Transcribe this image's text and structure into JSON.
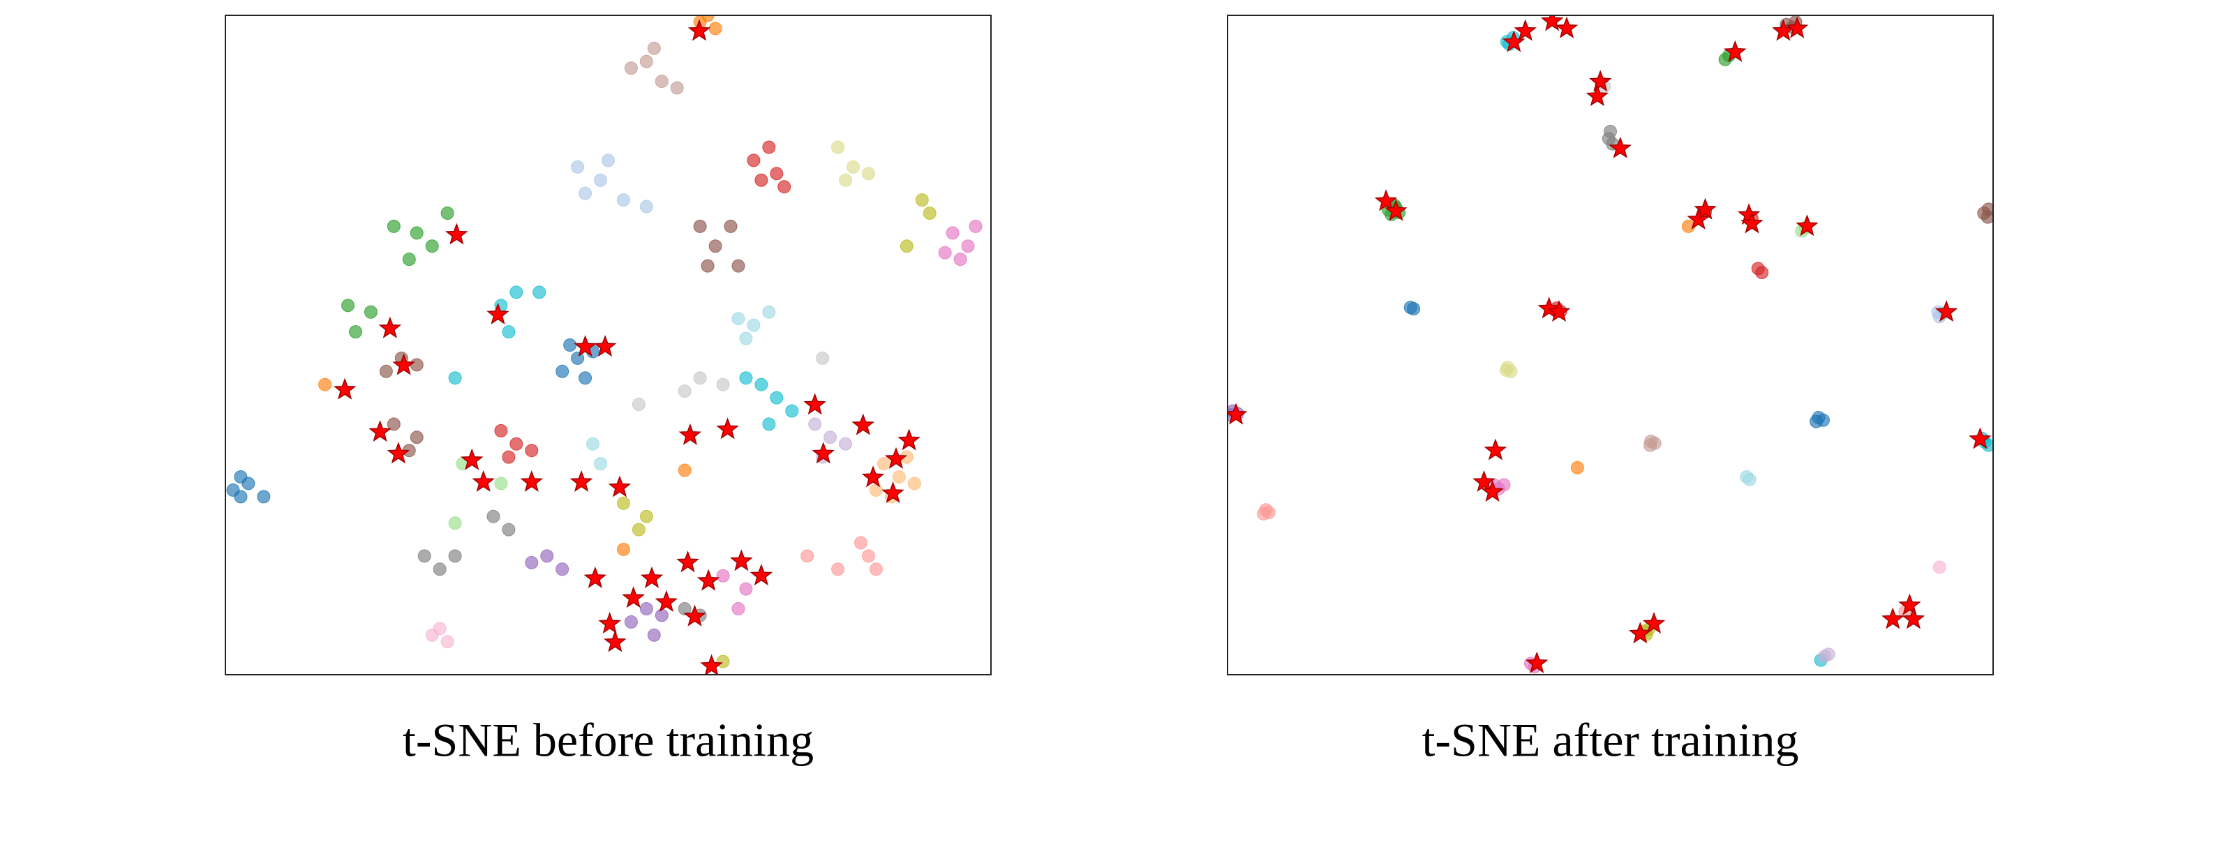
{
  "chart_data": [
    {
      "type": "scatter",
      "title": "t-SNE before training",
      "xlim": [
        0,
        100
      ],
      "ylim": [
        0,
        100
      ],
      "series": [
        {
          "color": "#1f77b4",
          "x": [
            46,
            44,
            48,
            47,
            45,
            2,
            1,
            3,
            2,
            5
          ],
          "values": [
            48,
            46,
            49,
            45,
            50,
            30,
            28,
            29,
            27,
            27
          ]
        },
        {
          "color": "#aec7e8",
          "x": [
            46,
            49,
            47,
            50,
            52,
            55
          ],
          "values": [
            77,
            75,
            73,
            78,
            72,
            71
          ]
        },
        {
          "color": "#ff7f0e",
          "x": [
            62,
            64,
            63,
            13,
            60,
            52
          ],
          "values": [
            99,
            98,
            100,
            44,
            31,
            19
          ]
        },
        {
          "color": "#ffbb78",
          "x": [
            86,
            88,
            90,
            85,
            87,
            89
          ],
          "values": [
            32,
            30,
            29,
            28,
            27,
            33
          ]
        },
        {
          "color": "#2ca02c",
          "x": [
            22,
            25,
            27,
            24,
            29,
            16,
            17,
            19
          ],
          "values": [
            68,
            67,
            65,
            63,
            70,
            56,
            52,
            55
          ]
        },
        {
          "color": "#98df8a",
          "x": [
            31,
            36,
            30
          ],
          "values": [
            32,
            29,
            23
          ]
        },
        {
          "color": "#d62728",
          "x": [
            69,
            71,
            72,
            73,
            70,
            36,
            38,
            40,
            37
          ],
          "values": [
            78,
            80,
            76,
            74,
            75,
            37,
            35,
            34,
            33
          ]
        },
        {
          "color": "#ff9896",
          "x": [
            76,
            80,
            84,
            85,
            83
          ],
          "values": [
            18,
            16,
            18,
            16,
            20
          ]
        },
        {
          "color": "#9467bd",
          "x": [
            42,
            44,
            40,
            55,
            57,
            53,
            56
          ],
          "values": [
            18,
            16,
            17,
            10,
            9,
            8,
            6
          ]
        },
        {
          "color": "#c5b0d5",
          "x": [
            77,
            79,
            78,
            81
          ],
          "values": [
            38,
            36,
            33,
            35
          ]
        },
        {
          "color": "#8c564b",
          "x": [
            62,
            64,
            67,
            63,
            66,
            23,
            25,
            21,
            22,
            25,
            24
          ],
          "values": [
            68,
            65,
            62,
            62,
            68,
            48,
            47,
            46,
            38,
            36,
            34
          ]
        },
        {
          "color": "#c49c94",
          "x": [
            53,
            55,
            57,
            56,
            59
          ],
          "values": [
            92,
            93,
            90,
            95,
            89
          ]
        },
        {
          "color": "#e377c2",
          "x": [
            95,
            97,
            98,
            94,
            96,
            65,
            68,
            67
          ],
          "values": [
            67,
            65,
            68,
            64,
            63,
            15,
            13,
            10
          ]
        },
        {
          "color": "#f7b6d2",
          "x": [
            28,
            29,
            27
          ],
          "values": [
            7,
            5,
            6
          ]
        },
        {
          "color": "#7f7f7f",
          "x": [
            26,
            28,
            30,
            35,
            37,
            60,
            62
          ],
          "values": [
            18,
            16,
            18,
            24,
            22,
            10,
            9
          ]
        },
        {
          "color": "#c7c7c7",
          "x": [
            60,
            62,
            65,
            78,
            54
          ],
          "values": [
            43,
            45,
            44,
            48,
            41
          ]
        },
        {
          "color": "#bcbd22",
          "x": [
            91,
            92,
            89,
            52,
            55,
            54,
            65
          ],
          "values": [
            72,
            70,
            65,
            26,
            24,
            22,
            2
          ]
        },
        {
          "color": "#dbdb8d",
          "x": [
            80,
            82,
            84,
            81
          ],
          "values": [
            80,
            77,
            76,
            75
          ]
        },
        {
          "color": "#17becf",
          "x": [
            36,
            38,
            41,
            37,
            30,
            70,
            72,
            68,
            74,
            71
          ],
          "values": [
            56,
            58,
            58,
            52,
            45,
            44,
            42,
            45,
            40,
            38
          ]
        },
        {
          "color": "#9edae5",
          "x": [
            67,
            69,
            71,
            68,
            48,
            49
          ],
          "values": [
            54,
            53,
            55,
            51,
            35,
            32
          ]
        },
        {
          "color": "#ff0000",
          "marker": "star",
          "x": [
            30.2,
            21.5,
            15.6,
            23.3,
            35.6,
            47,
            49.6,
            20.2,
            22.6,
            32.2,
            33.7,
            40,
            46.5,
            51.5,
            60.7,
            65.6,
            77,
            83.3,
            89.3,
            84.6,
            87.6,
            87.2,
            78.1,
            48.3,
            55.7,
            53.3,
            50.2,
            50.9,
            57.6,
            61.3,
            63.1,
            60.4,
            67.4,
            70,
            63.5,
            61.9
          ],
          "values": [
            66.7,
            52.5,
            43.2,
            46.9,
            54.6,
            49.7,
            49.7,
            36.8,
            33.5,
            32.5,
            29.2,
            29.2,
            29.2,
            28.4,
            36.3,
            37.2,
            40.9,
            37.8,
            35.5,
            29.9,
            32.7,
            27.5,
            33.5,
            14.6,
            14.6,
            11.6,
            7.7,
            4.9,
            11,
            8.8,
            14.2,
            17,
            17.2,
            15,
            1.3,
            97.6
          ]
        }
      ]
    },
    {
      "type": "scatter",
      "title": "t-SNE after training",
      "xlim": [
        0,
        100
      ],
      "ylim": [
        0,
        100
      ],
      "series": [
        {
          "color": "#17becf",
          "x": [
            36.5,
            37.3,
            36.8,
            98.9,
            99.4,
            98.6,
            77.5
          ],
          "values": [
            96,
            96.6,
            95.6,
            35.3,
            34.8,
            35.8,
            2.2
          ]
        },
        {
          "color": "#8c564b",
          "x": [
            73,
            73.8,
            74.2,
            98.8,
            99.4,
            99.3
          ],
          "values": [
            98.6,
            98.2,
            99,
            70,
            70.6,
            69.4
          ]
        },
        {
          "color": "#2ca02c",
          "x": [
            65,
            65.5,
            21,
            21.8,
            22.4,
            21.4,
            22
          ],
          "values": [
            93.3,
            93.9,
            70.5,
            71.2,
            70.1,
            69.8,
            70.8
          ]
        },
        {
          "color": "#c7c7c7",
          "x": [
            48.8,
            49.2
          ],
          "values": [
            89.8,
            89.2
          ]
        },
        {
          "color": "#7f7f7f",
          "x": [
            49.8,
            50.3,
            50
          ],
          "values": [
            81.3,
            80.5,
            82.4
          ]
        },
        {
          "color": "#ff7f0e",
          "x": [
            60.2,
            45.7
          ],
          "values": [
            68,
            31.4
          ]
        },
        {
          "color": "#d62728",
          "x": [
            62.4,
            68.5,
            69.3,
            69.8,
            43,
            43.5
          ],
          "values": [
            70.2,
            69.2,
            61.6,
            61,
            55.6,
            55.1
          ]
        },
        {
          "color": "#98df8a",
          "x": [
            75,
            75.5
          ],
          "values": [
            67.3,
            67.8
          ]
        },
        {
          "color": "#1f77b4",
          "x": [
            23.9,
            24.3,
            77.2,
            77.8,
            76.9
          ],
          "values": [
            55.7,
            55.5,
            39,
            38.6,
            38.4
          ]
        },
        {
          "color": "#aec7e8",
          "x": [
            93,
            93.6,
            92.8
          ],
          "values": [
            54.3,
            54.9,
            55
          ]
        },
        {
          "color": "#dbdb8d",
          "x": [
            36.4,
            37,
            36.6
          ],
          "values": [
            46.2,
            46,
            46.6
          ]
        },
        {
          "color": "#9467bd",
          "x": [
            0.7,
            1.3,
            0.4
          ],
          "values": [
            40,
            39.6,
            39.4
          ]
        },
        {
          "color": "#c49c94",
          "x": [
            55.3,
            55.8,
            55.2
          ],
          "values": [
            35.4,
            35.1,
            34.8
          ]
        },
        {
          "color": "#e377c2",
          "x": [
            35.4,
            36.1,
            34.9,
            39.6,
            40.1
          ],
          "values": [
            28.2,
            28.8,
            28.7,
            1.7,
            1.2
          ]
        },
        {
          "color": "#9edae5",
          "x": [
            67.8,
            68.2
          ],
          "values": [
            30,
            29.6
          ]
        },
        {
          "color": "#ff9896",
          "x": [
            5,
            5.4,
            4.7,
            88.5
          ],
          "values": [
            25,
            24.6,
            24.4,
            9.6
          ]
        },
        {
          "color": "#f7b6d2",
          "x": [
            93
          ],
          "values": [
            16.3
          ]
        },
        {
          "color": "#bcbd22",
          "x": [
            54.4,
            55,
            54.7
          ],
          "values": [
            6.6,
            6.9,
            6.1
          ]
        },
        {
          "color": "#c5b0d5",
          "x": [
            78,
            78.5
          ],
          "values": [
            2.8,
            3.1
          ]
        },
        {
          "color": "#ff0000",
          "marker": "star",
          "x": [
            37.4,
            38.9,
            42.4,
            44.3,
            72.6,
            74.4,
            66.3,
            48.7,
            48.3,
            51.3,
            20.7,
            22,
            61.5,
            62.4,
            68.1,
            68.5,
            75.7,
            42,
            43.3,
            93.9,
            1.1,
            35,
            33.5,
            34.6,
            98.3,
            86.9,
            89.1,
            89.6,
            53.9,
            55.7,
            40.4
          ],
          "values": [
            95.9,
            97.6,
            99.1,
            98,
            97.6,
            98,
            94.4,
            89.9,
            87.7,
            79.8,
            71.8,
            70.3,
            69,
            70.5,
            69.7,
            68.4,
            68,
            55.5,
            55,
            55,
            39.4,
            34,
            29.2,
            27.7,
            35.7,
            8.4,
            10.5,
            8.4,
            6.2,
            7.7,
            1.7
          ]
        }
      ]
    }
  ]
}
